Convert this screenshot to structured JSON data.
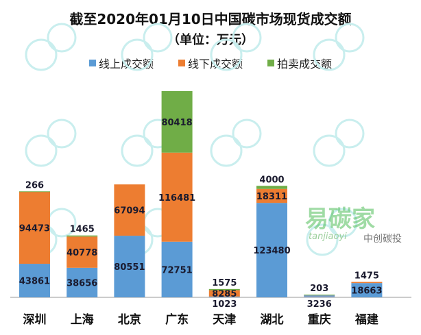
{
  "chart_data": {
    "type": "bar",
    "stacked": true,
    "title": "截至2020年01月10日中国碳市场现货成交额",
    "subtitle": "（单位：万元）",
    "categories": [
      "深圳",
      "上海",
      "北京",
      "广东",
      "天津",
      "湖北",
      "重庆",
      "福建"
    ],
    "series": [
      {
        "name": "线上成交额",
        "color": "#5b9bd5",
        "values": [
          43861,
          38656,
          80551,
          72751,
          1023,
          123480,
          3236,
          18663
        ]
      },
      {
        "name": "线下成交额",
        "color": "#ed7d31",
        "values": [
          94473,
          40778,
          67094,
          116481,
          8285,
          18311,
          null,
          1475
        ]
      },
      {
        "name": "拍卖成交额",
        "color": "#70ad47",
        "values": [
          266,
          1465,
          null,
          80418,
          1575,
          4000,
          203,
          null
        ]
      }
    ],
    "legend_position": "top",
    "grid": false,
    "ylim": [
      0,
      270000
    ]
  },
  "watermark": {
    "brand": "易碳家",
    "sub": "tanjiaoyi",
    "account": "中创碳投"
  }
}
